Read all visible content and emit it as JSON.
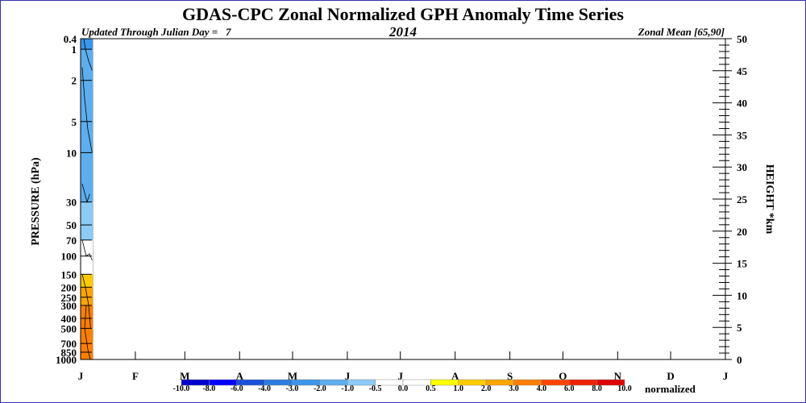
{
  "chart_data": {
    "type": "heatmap",
    "title": "GDAS-CPC Zonal Normalized GPH Anomaly Time Series",
    "subtitle_left": "Updated Through Julian Day =   7",
    "subtitle_center": "2014",
    "subtitle_right": "Zonal Mean [65,90]",
    "ylabel_left": "PRESSURE (hPa)",
    "ylabel_right": "HEIGHT *km",
    "pressure_ticks": [
      0.4,
      1,
      2,
      5,
      10,
      30,
      50,
      70,
      100,
      150,
      200,
      250,
      300,
      400,
      500,
      700,
      850,
      1000
    ],
    "pressure_tick_labels": [
      "0.4",
      "1",
      "2",
      "5",
      "10",
      "30",
      "50",
      "70",
      "100",
      "150",
      "200",
      "250",
      "300",
      "400",
      "500",
      "700",
      "850",
      "1000"
    ],
    "height_ticks": [
      0,
      5,
      10,
      15,
      20,
      25,
      30,
      35,
      40,
      45,
      50
    ],
    "height_tick_labels": [
      "0",
      "5",
      "10",
      "15",
      "20",
      "25",
      "30",
      "35",
      "40",
      "45",
      "50"
    ],
    "height_range_km": [
      0,
      50
    ],
    "month_labels": [
      "J",
      "F",
      "M",
      "A",
      "M",
      "J",
      "J",
      "A",
      "S",
      "O",
      "N",
      "D",
      "J"
    ],
    "days_in_months": [
      31,
      28,
      31,
      30,
      31,
      30,
      31,
      31,
      30,
      31,
      30,
      31
    ],
    "data_days": [
      1,
      7
    ],
    "colorbar": {
      "label": "normalized",
      "bounds": [
        "-10.0",
        "-8.0",
        "-6.0",
        "-4.0",
        "-3.0",
        "-2.0",
        "-1.0",
        "-0.5",
        "0.0",
        "0.5",
        "1.0",
        "2.0",
        "3.0",
        "4.0",
        "6.0",
        "8.0",
        "10.0"
      ],
      "colors": [
        "#0000cc",
        "#0000ff",
        "#1a4fd8",
        "#2a7de0",
        "#3b95ea",
        "#5caeef",
        "#8ccbf5",
        "#ffffff",
        "#ffffff",
        "#ffff00",
        "#ffcc00",
        "#ffa500",
        "#ff7f00",
        "#ff4500",
        "#ee2200",
        "#dd0000"
      ]
    },
    "anomaly_profile": [
      {
        "pressure_hPa": 0.4,
        "value": -2.5
      },
      {
        "pressure_hPa": 1,
        "value": -2.0
      },
      {
        "pressure_hPa": 10,
        "value": -1.5
      },
      {
        "pressure_hPa": 30,
        "value": -0.8
      },
      {
        "pressure_hPa": 70,
        "value": -0.6
      },
      {
        "pressure_hPa": 100,
        "value": 0.0
      },
      {
        "pressure_hPa": 150,
        "value": 0.8
      },
      {
        "pressure_hPa": 200,
        "value": 1.5
      },
      {
        "pressure_hPa": 300,
        "value": 2.5
      },
      {
        "pressure_hPa": 500,
        "value": 3.5
      },
      {
        "pressure_hPa": 1000,
        "value": 3.0
      }
    ]
  }
}
